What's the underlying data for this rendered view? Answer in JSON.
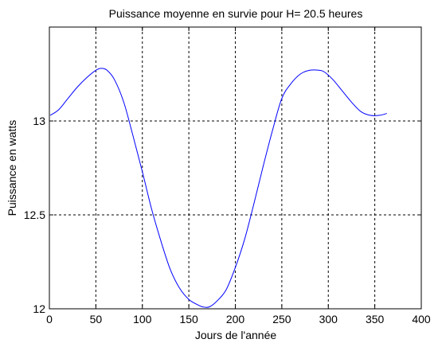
{
  "chart_data": {
    "type": "line",
    "title": "Puissance moyenne en survie pour H= 20.5 heures",
    "xlabel": "Jours de l'année",
    "ylabel": "Puissance en watts",
    "xlim": [
      0,
      400
    ],
    "ylim": [
      12,
      13.5
    ],
    "xticks": [
      0,
      50,
      100,
      150,
      200,
      250,
      300,
      350,
      400
    ],
    "xtick_labels": [
      "0",
      "50",
      "100",
      "150",
      "200",
      "250",
      "300",
      "350",
      "400"
    ],
    "yticks": [
      12,
      12.5,
      13
    ],
    "ytick_labels": [
      "12",
      "12.5",
      "13"
    ],
    "grid": true,
    "line_color": "#0000ff",
    "series": [
      {
        "x": [
          1,
          10,
          20,
          30,
          40,
          50,
          56,
          62,
          70,
          80,
          90,
          100,
          110,
          120,
          130,
          140,
          150,
          160,
          165,
          172,
          180,
          190,
          200,
          210,
          220,
          230,
          240,
          250,
          260,
          270,
          280,
          290,
          296,
          305,
          315,
          325,
          335,
          345,
          355,
          363
        ],
        "y": [
          13.03,
          13.06,
          13.12,
          13.18,
          13.23,
          13.27,
          13.28,
          13.27,
          13.22,
          13.1,
          12.92,
          12.73,
          12.53,
          12.36,
          12.21,
          12.11,
          12.05,
          12.02,
          12.01,
          12.01,
          12.04,
          12.1,
          12.22,
          12.37,
          12.56,
          12.76,
          12.95,
          13.12,
          13.2,
          13.25,
          13.27,
          13.27,
          13.26,
          13.22,
          13.16,
          13.1,
          13.05,
          13.03,
          13.03,
          13.04
        ]
      }
    ]
  }
}
